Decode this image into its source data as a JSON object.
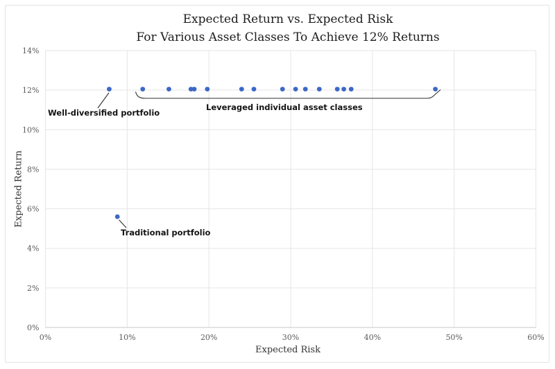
{
  "chart_data": {
    "type": "scatter",
    "title": "Expected Return vs. Expected Risk",
    "subtitle": "For Various Asset Classes To Achieve 12% Returns",
    "xlabel": "Expected Risk",
    "ylabel": "Expected Return",
    "xlim": [
      0,
      60
    ],
    "ylim": [
      0,
      14
    ],
    "grid": true,
    "legend_position": "none",
    "point_color": "#3d68c5",
    "grid_color": "#e5e5e5",
    "x_ticks": [
      {
        "value": 0,
        "label": "0%"
      },
      {
        "value": 10,
        "label": "10%"
      },
      {
        "value": 20,
        "label": "20%"
      },
      {
        "value": 30,
        "label": "30%"
      },
      {
        "value": 40,
        "label": "40%"
      },
      {
        "value": 50,
        "label": "50%"
      },
      {
        "value": 60,
        "label": "60%"
      }
    ],
    "y_ticks": [
      {
        "value": 0,
        "label": "0%"
      },
      {
        "value": 2,
        "label": "2%"
      },
      {
        "value": 4,
        "label": "4%"
      },
      {
        "value": 6,
        "label": "6%"
      },
      {
        "value": 8,
        "label": "8%"
      },
      {
        "value": 10,
        "label": "10%"
      },
      {
        "value": 12,
        "label": "12%"
      },
      {
        "value": 14,
        "label": "14%"
      }
    ],
    "series": [
      {
        "name": "Well-diversified portfolio",
        "points": [
          {
            "x": 7.8,
            "y": 12.05
          }
        ]
      },
      {
        "name": "Leveraged individual asset classes",
        "points": [
          {
            "x": 11.9,
            "y": 12.05
          },
          {
            "x": 15.1,
            "y": 12.05
          },
          {
            "x": 17.8,
            "y": 12.05
          },
          {
            "x": 18.2,
            "y": 12.05
          },
          {
            "x": 19.8,
            "y": 12.05
          },
          {
            "x": 24.0,
            "y": 12.05
          },
          {
            "x": 25.5,
            "y": 12.05
          },
          {
            "x": 29.0,
            "y": 12.05
          },
          {
            "x": 30.6,
            "y": 12.05
          },
          {
            "x": 31.8,
            "y": 12.05
          },
          {
            "x": 33.5,
            "y": 12.05
          },
          {
            "x": 35.7,
            "y": 12.05
          },
          {
            "x": 36.5,
            "y": 12.05
          },
          {
            "x": 37.4,
            "y": 12.05
          },
          {
            "x": 47.7,
            "y": 12.05
          }
        ]
      },
      {
        "name": "Traditional portfolio",
        "points": [
          {
            "x": 8.8,
            "y": 5.6
          }
        ]
      }
    ],
    "annotations": [
      {
        "id": "well_diversified",
        "text": "Well-diversified portfolio",
        "target": {
          "x": 7.8,
          "y": 12.05
        }
      },
      {
        "id": "traditional",
        "text": "Traditional portfolio",
        "target": {
          "x": 8.8,
          "y": 5.6
        }
      },
      {
        "id": "leveraged_bracket",
        "text": "Leveraged individual asset classes",
        "span_x": [
          11.9,
          47.7
        ]
      }
    ]
  }
}
